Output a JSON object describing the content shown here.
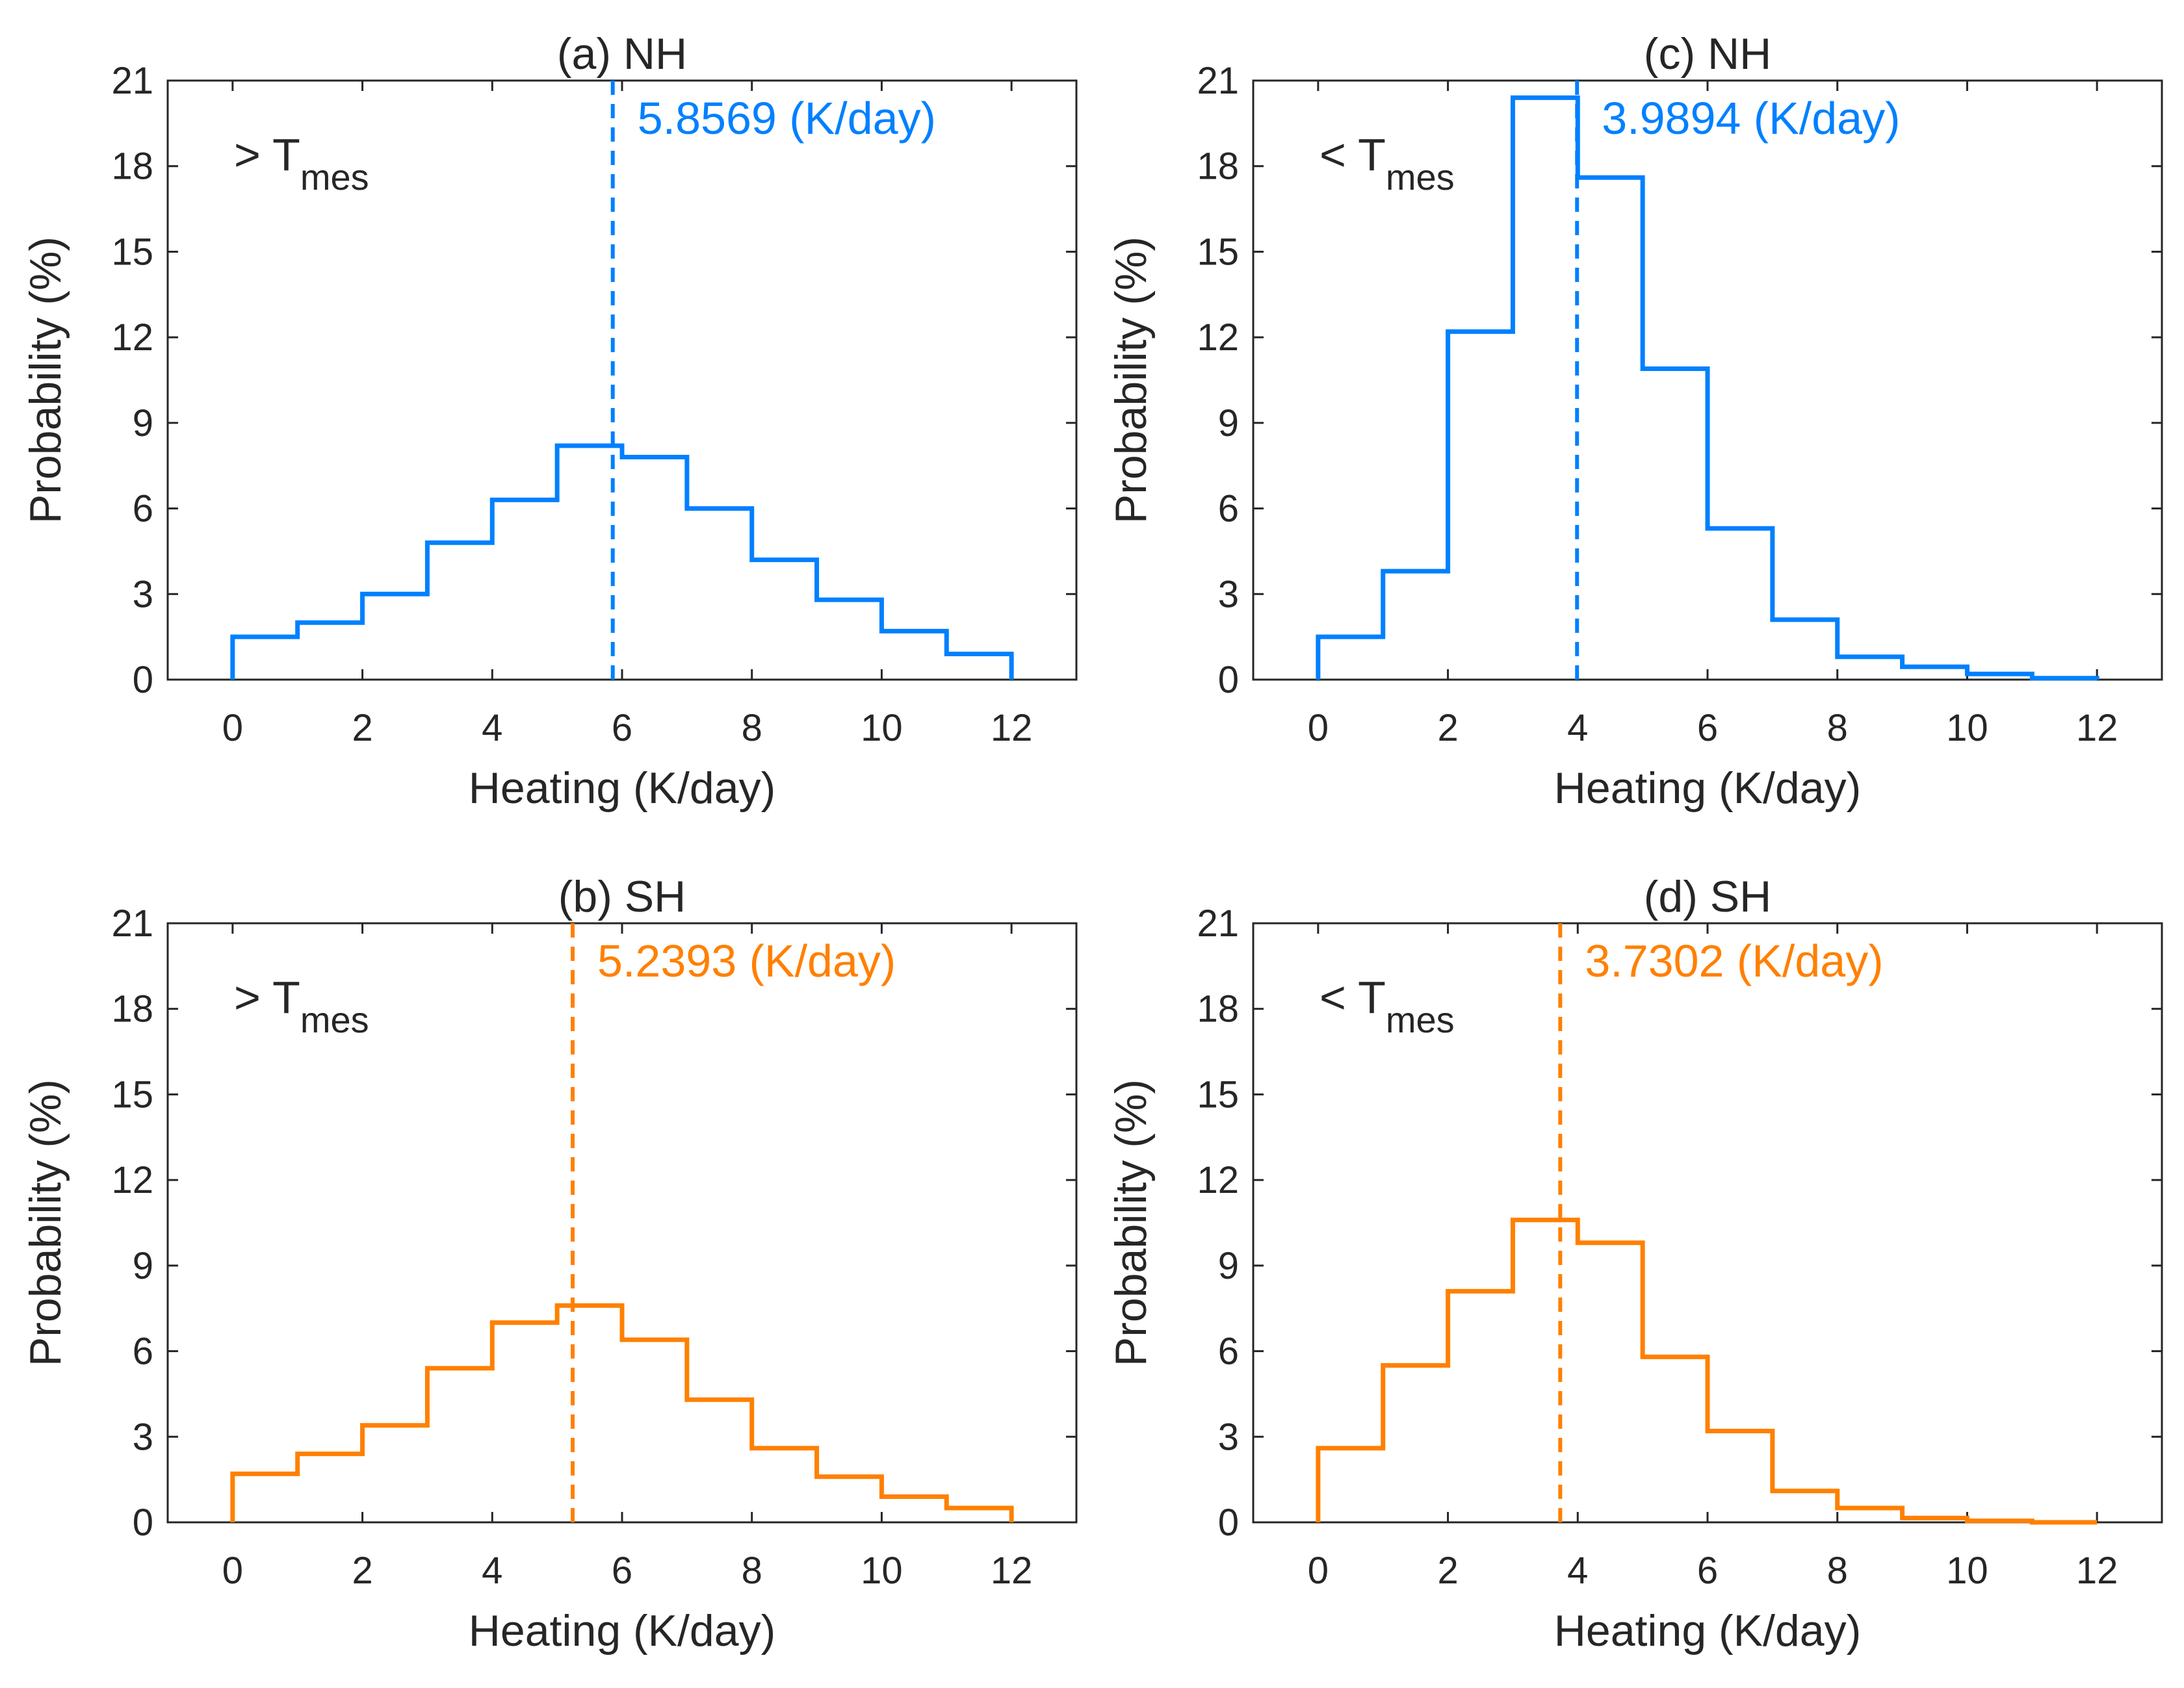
{
  "chart_data": [
    {
      "type": "histogram-step",
      "title": "(a) NH",
      "xlabel": "Heating (K/day)",
      "ylabel": "Probability (%)",
      "xlim": [
        -1,
        13
      ],
      "ylim": [
        0,
        21
      ],
      "xticks": [
        0,
        2,
        4,
        6,
        8,
        10,
        12
      ],
      "yticks": [
        0,
        3,
        6,
        9,
        12,
        15,
        18,
        21
      ],
      "bin_edges": [
        0,
        1,
        2,
        3,
        4,
        5,
        6,
        7,
        8,
        9,
        10,
        11,
        12
      ],
      "values": [
        1.5,
        2.0,
        3.0,
        4.8,
        6.3,
        8.2,
        7.8,
        6.0,
        4.2,
        2.8,
        1.7,
        0.9
      ],
      "color": "#0080ff",
      "condition_main": "> T",
      "condition_sub": "mes",
      "mean": 5.8569,
      "mean_label": "5.8569 (K/day)"
    },
    {
      "type": "histogram-step",
      "title": "(c) NH",
      "xlabel": "Heating (K/day)",
      "ylabel": "Probability (%)",
      "xlim": [
        -1,
        13
      ],
      "ylim": [
        0,
        21
      ],
      "xticks": [
        0,
        2,
        4,
        6,
        8,
        10,
        12
      ],
      "yticks": [
        0,
        3,
        6,
        9,
        12,
        15,
        18,
        21
      ],
      "bin_edges": [
        0,
        1,
        2,
        3,
        4,
        5,
        6,
        7,
        8,
        9,
        10,
        11,
        12
      ],
      "values": [
        1.5,
        3.8,
        12.2,
        20.4,
        17.6,
        10.9,
        5.3,
        2.1,
        0.8,
        0.45,
        0.2,
        0.05
      ],
      "color": "#0080ff",
      "condition_main": "< T",
      "condition_sub": "mes",
      "mean": 3.9894,
      "mean_label": "3.9894 (K/day)"
    },
    {
      "type": "histogram-step",
      "title": "(b) SH",
      "xlabel": "Heating (K/day)",
      "ylabel": "Probability (%)",
      "xlim": [
        -1,
        13
      ],
      "ylim": [
        0,
        21
      ],
      "xticks": [
        0,
        2,
        4,
        6,
        8,
        10,
        12
      ],
      "yticks": [
        0,
        3,
        6,
        9,
        12,
        15,
        18,
        21
      ],
      "bin_edges": [
        0,
        1,
        2,
        3,
        4,
        5,
        6,
        7,
        8,
        9,
        10,
        11,
        12
      ],
      "values": [
        1.7,
        2.4,
        3.4,
        5.4,
        7.0,
        7.6,
        6.4,
        4.3,
        2.6,
        1.6,
        0.9,
        0.5
      ],
      "color": "#ff8000",
      "condition_main": "> T",
      "condition_sub": "mes",
      "mean": 5.2393,
      "mean_label": "5.2393 (K/day)"
    },
    {
      "type": "histogram-step",
      "title": "(d) SH",
      "xlabel": "Heating (K/day)",
      "ylabel": "Probability (%)",
      "xlim": [
        -1,
        13
      ],
      "ylim": [
        0,
        21
      ],
      "xticks": [
        0,
        2,
        4,
        6,
        8,
        10,
        12
      ],
      "yticks": [
        0,
        3,
        6,
        9,
        12,
        15,
        18,
        21
      ],
      "bin_edges": [
        0,
        1,
        2,
        3,
        4,
        5,
        6,
        7,
        8,
        9,
        10,
        11,
        12
      ],
      "values": [
        2.6,
        5.5,
        8.1,
        10.6,
        9.8,
        5.8,
        3.2,
        1.1,
        0.5,
        0.15,
        0.05,
        0.0
      ],
      "color": "#ff8000",
      "condition_main": "< T",
      "condition_sub": "mes",
      "mean": 3.7302,
      "mean_label": "3.7302 (K/day)"
    }
  ]
}
